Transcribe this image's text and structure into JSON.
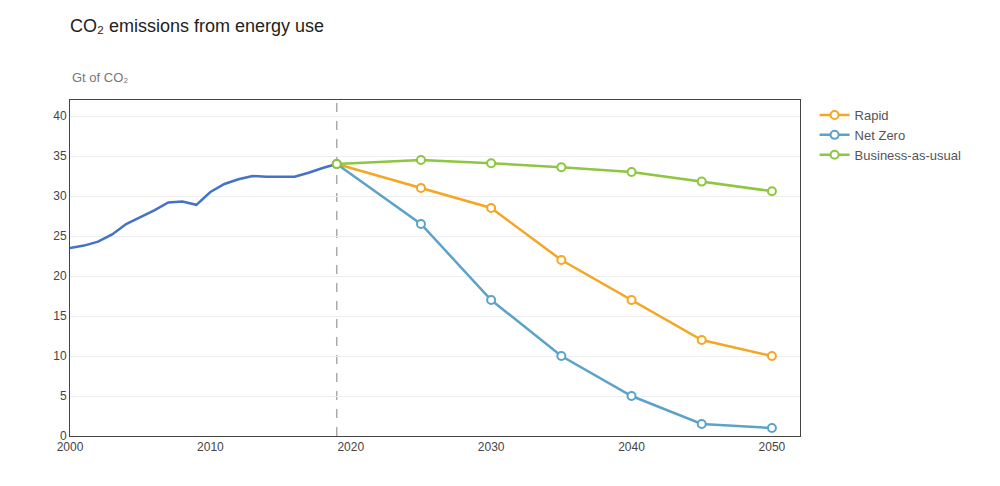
{
  "chart_data": {
    "type": "line",
    "title": "CO₂ emissions from energy use",
    "ylabel": "Gt of CO₂",
    "xlim": [
      2000,
      2052
    ],
    "ylim": [
      0,
      42
    ],
    "xticks": [
      2000,
      2010,
      2020,
      2030,
      2040,
      2050
    ],
    "yticks": [
      0,
      5,
      10,
      15,
      20,
      25,
      30,
      35,
      40
    ],
    "grid": "y",
    "legend": "right",
    "series": [
      {
        "x": [
          2000,
          2001,
          2002,
          2003,
          2004,
          2005,
          2006,
          2007,
          2008,
          2009,
          2010,
          2011,
          2012,
          2013,
          2014,
          2015,
          2016,
          2017,
          2018,
          2019
        ],
        "values": [
          23.5,
          23.8,
          24.3,
          25.2,
          26.5,
          27.3,
          28.2,
          29.2,
          29.3,
          28.9,
          30.5,
          31.5,
          32.1,
          32.5,
          32.4,
          32.4,
          32.4,
          32.9,
          33.5,
          34.0
        ],
        "color": "#4472c4"
      },
      {
        "name": "Rapid",
        "x": [
          2019,
          2025,
          2030,
          2035,
          2040,
          2045,
          2050
        ],
        "values": [
          34.0,
          31.0,
          28.5,
          22.0,
          17.0,
          12.0,
          10.0
        ],
        "color": "#f5a623",
        "marker": "circle"
      },
      {
        "name": "Net Zero",
        "x": [
          2019,
          2025,
          2030,
          2035,
          2040,
          2045,
          2050
        ],
        "values": [
          34.0,
          26.5,
          17.0,
          10.0,
          5.0,
          1.5,
          1.0
        ],
        "color": "#5ba3c9",
        "marker": "circle"
      },
      {
        "name": "Business-as-usual",
        "x": [
          2019,
          2025,
          2030,
          2035,
          2040,
          2045,
          2050
        ],
        "values": [
          34.0,
          34.5,
          34.1,
          33.6,
          33.0,
          31.8,
          30.6
        ],
        "color": "#8dc63f",
        "marker": "circle"
      }
    ],
    "vline": {
      "x": 2019,
      "color": "#aaaaaa",
      "line_style": "dashed"
    }
  }
}
